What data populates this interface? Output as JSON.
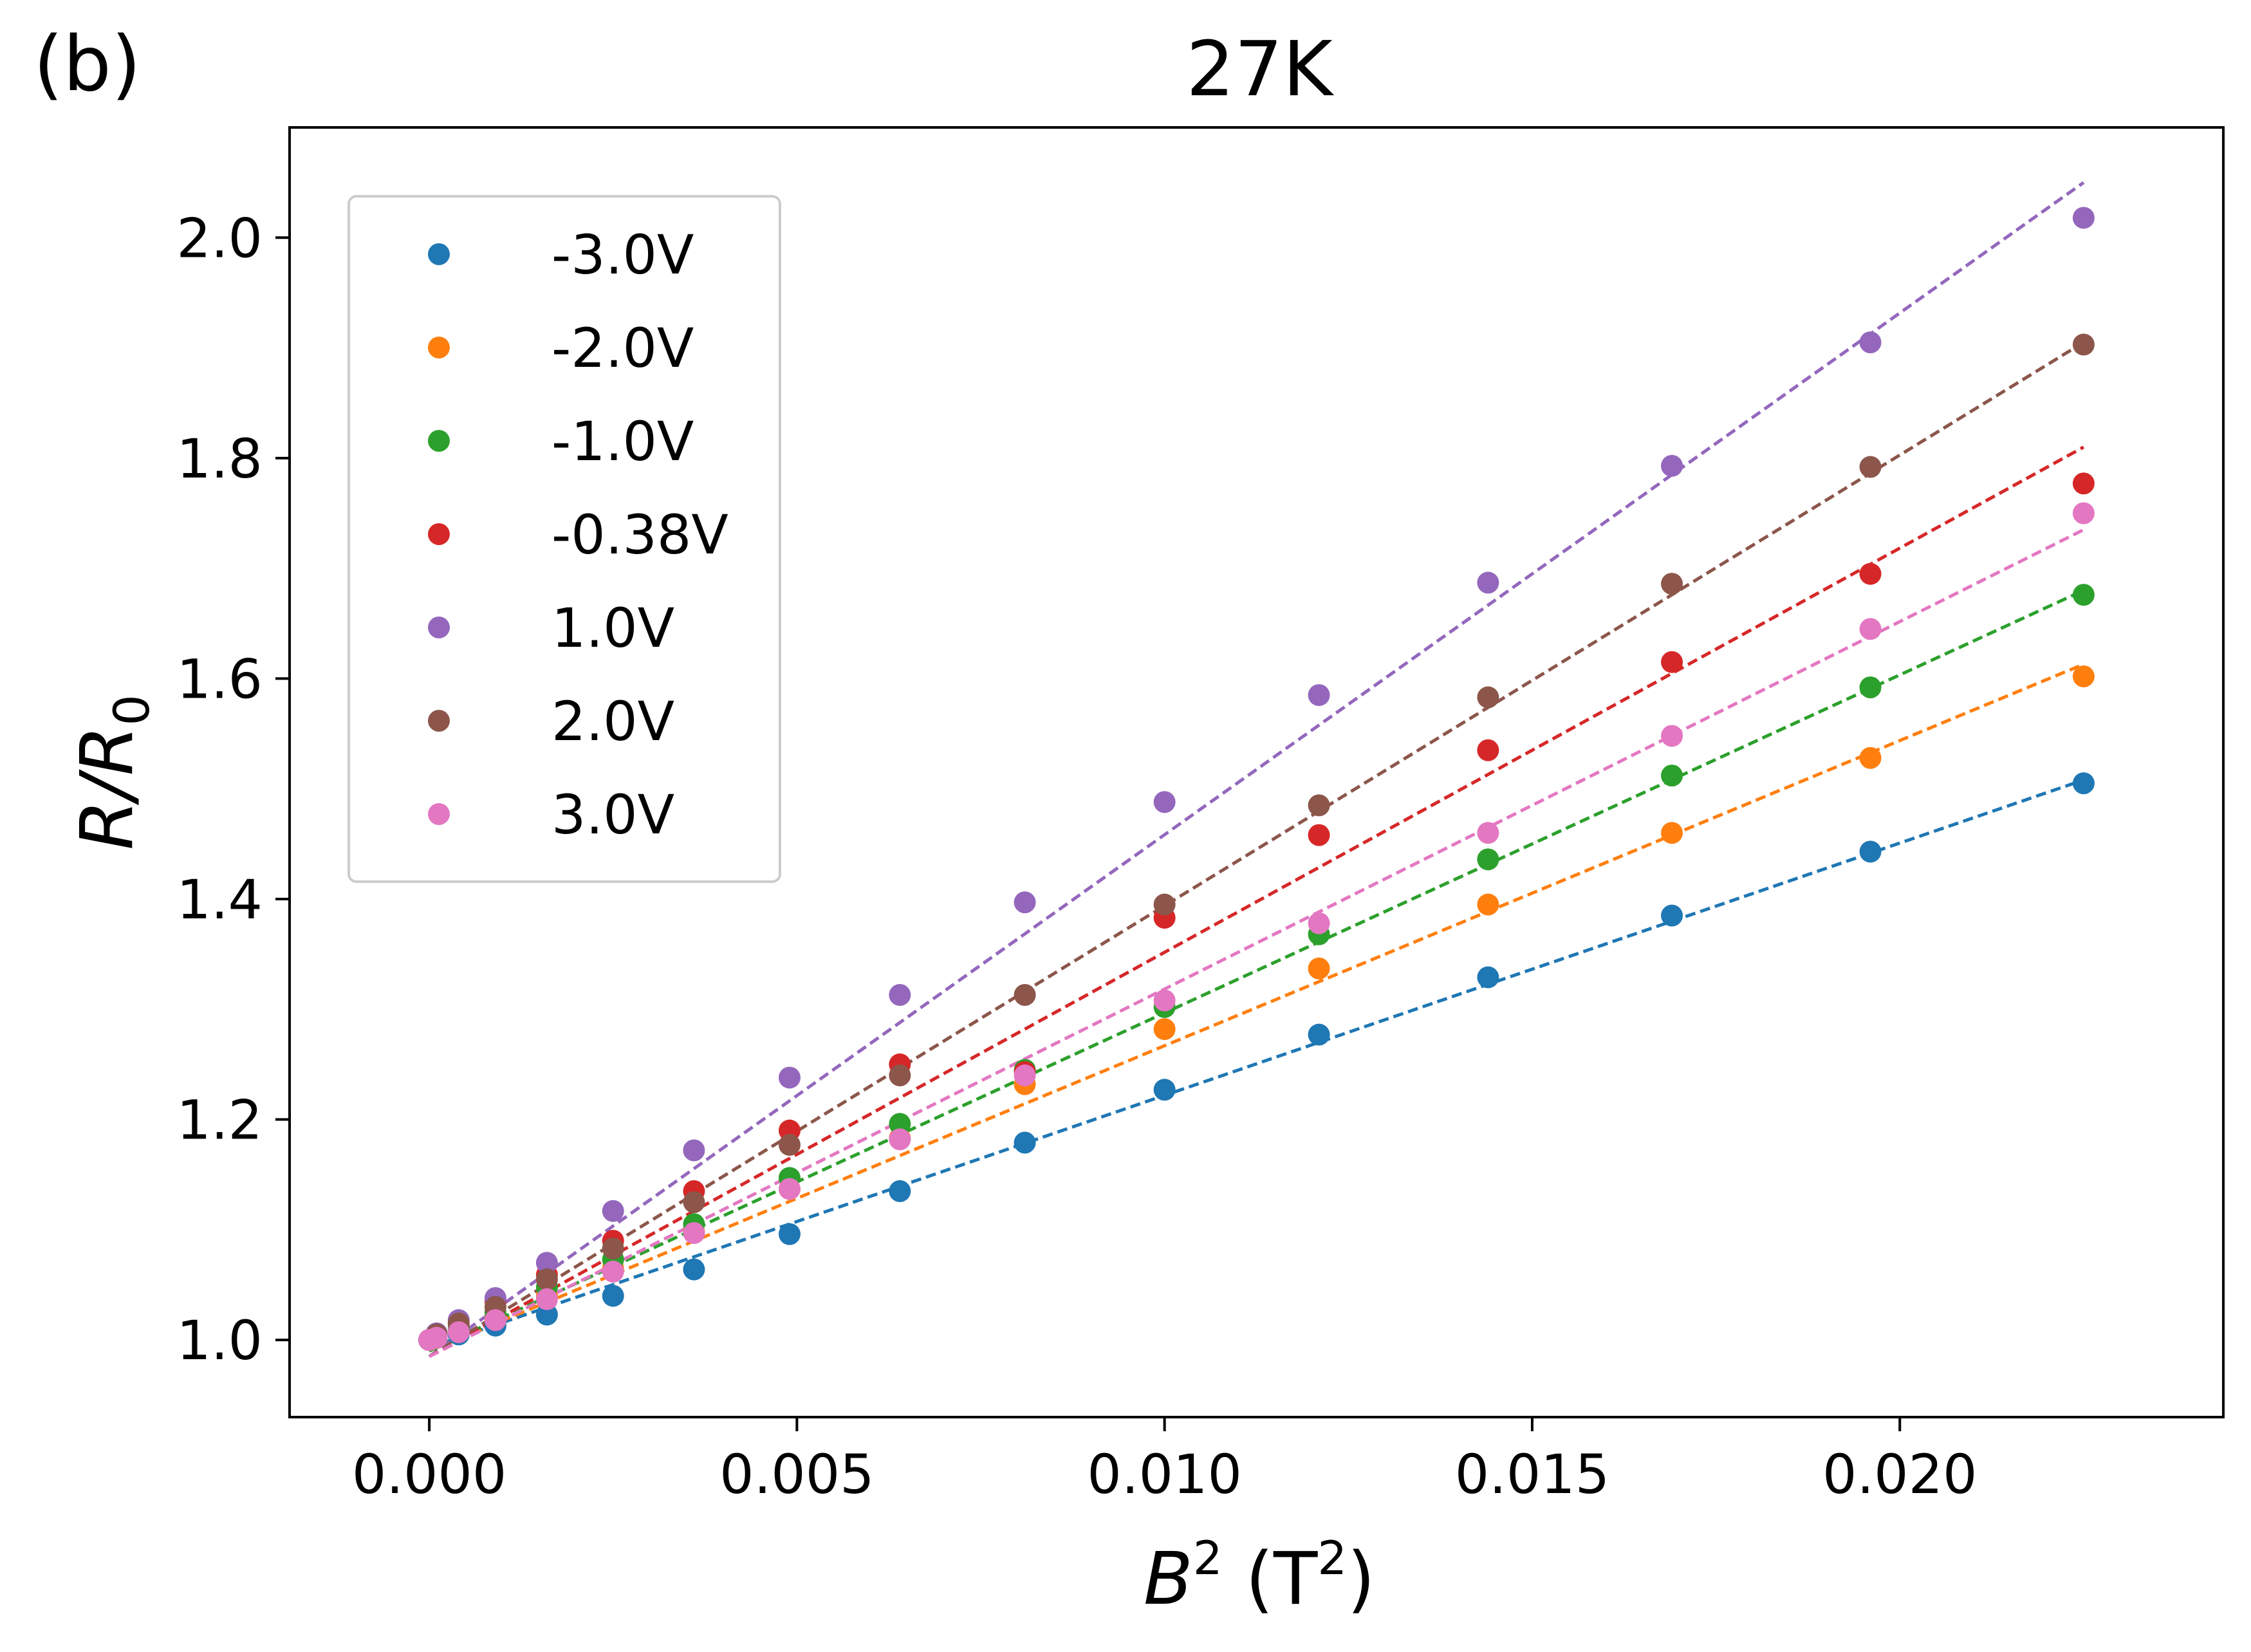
{
  "panel_label": "(b)",
  "chart_data": {
    "type": "scatter",
    "title": "27K",
    "xlabel": {
      "main": "B",
      "sup1": "2",
      "unit_open": " (T",
      "sup2": "2",
      "unit_close": ")"
    },
    "ylabel": {
      "main": "R/R",
      "sub": "0"
    },
    "xlim": [
      -0.0019,
      0.0244
    ],
    "ylim": [
      0.93,
      2.1
    ],
    "x_ticks": [
      0.0,
      0.005,
      0.01,
      0.015,
      0.02
    ],
    "x_tick_labels": [
      "0.000",
      "0.005",
      "0.010",
      "0.015",
      "0.020"
    ],
    "y_ticks": [
      1.0,
      1.2,
      1.4,
      1.6,
      1.8,
      2.0
    ],
    "y_tick_labels": [
      "1.0",
      "1.2",
      "1.4",
      "1.6",
      "1.8",
      "2.0"
    ],
    "grid": false,
    "legend_position": "upper-left",
    "x": [
      0.0,
      0.0001,
      0.0004,
      0.0009,
      0.0016,
      0.0025,
      0.0036,
      0.0049,
      0.0064,
      0.0081,
      0.01,
      0.0121,
      0.0144,
      0.0169,
      0.0196,
      0.0225
    ],
    "fit_x": [
      0.0,
      0.0225
    ],
    "series": [
      {
        "name": "-3.0V",
        "color": "#1f77b4",
        "values": [
          1.0,
          1.002,
          1.005,
          1.013,
          1.023,
          1.04,
          1.064,
          1.096,
          1.135,
          1.179,
          1.227,
          1.277,
          1.329,
          1.385,
          1.443,
          1.505
        ],
        "fit": [
          0.993,
          1.508
        ]
      },
      {
        "name": "-2.0V",
        "color": "#ff7f0e",
        "values": [
          1.0,
          1.003,
          1.008,
          1.02,
          1.04,
          1.065,
          1.098,
          1.137,
          1.183,
          1.232,
          1.282,
          1.337,
          1.395,
          1.46,
          1.528,
          1.602
        ],
        "fit": [
          0.99,
          1.613
        ]
      },
      {
        "name": "-1.0V",
        "color": "#2ca02c",
        "values": [
          1.0,
          1.004,
          1.01,
          1.025,
          1.048,
          1.073,
          1.105,
          1.147,
          1.196,
          1.245,
          1.302,
          1.368,
          1.436,
          1.512,
          1.592,
          1.676
        ],
        "fit": [
          0.99,
          1.68
        ]
      },
      {
        "name": "-0.38V",
        "color": "#d62728",
        "values": [
          1.0,
          1.005,
          1.015,
          1.035,
          1.059,
          1.09,
          1.135,
          1.19,
          1.25,
          1.243,
          1.383,
          1.458,
          1.535,
          1.615,
          1.695,
          1.777
        ],
        "fit": [
          0.985,
          1.81
        ]
      },
      {
        "name": "1.0V",
        "color": "#9467bd",
        "values": [
          1.0,
          1.006,
          1.018,
          1.038,
          1.07,
          1.117,
          1.172,
          1.238,
          1.313,
          1.397,
          1.488,
          1.585,
          1.687,
          1.793,
          1.905,
          2.018
        ],
        "fit": [
          0.985,
          2.05
        ]
      },
      {
        "name": "2.0V",
        "color": "#8c564b",
        "values": [
          1.0,
          1.005,
          1.015,
          1.03,
          1.055,
          1.083,
          1.125,
          1.177,
          1.24,
          1.313,
          1.395,
          1.485,
          1.583,
          1.686,
          1.792,
          1.903
        ],
        "fit": [
          0.985,
          1.905
        ]
      },
      {
        "name": "3.0V",
        "color": "#e377c2",
        "values": [
          1.0,
          1.002,
          1.007,
          1.018,
          1.037,
          1.062,
          1.097,
          1.137,
          1.182,
          1.24,
          1.308,
          1.378,
          1.46,
          1.548,
          1.645,
          1.75
        ],
        "fit": [
          0.985,
          1.735
        ]
      }
    ]
  }
}
